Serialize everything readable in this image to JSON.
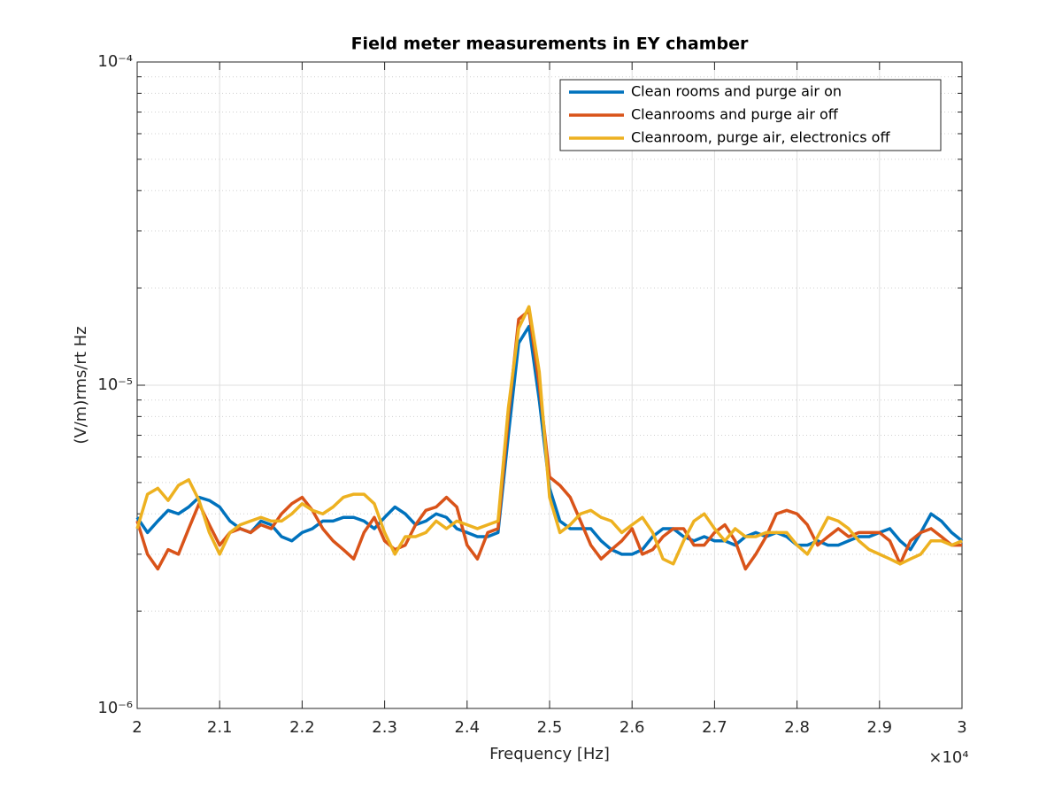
{
  "chart_data": {
    "type": "line",
    "title": "Field meter measurements in EY chamber",
    "x_label": "Frequency [Hz]",
    "y_label": "(V/m)rms/rt Hz",
    "x_multiplier": "×10⁴",
    "log_y": true,
    "grid": true,
    "minor_grid": true,
    "legend_position": "northeast",
    "xlim": [
      20000,
      30000
    ],
    "xticks": [
      {
        "value": 20000,
        "label": "2"
      },
      {
        "value": 21000,
        "label": "2.1"
      },
      {
        "value": 22000,
        "label": "2.2"
      },
      {
        "value": 23000,
        "label": "2.3"
      },
      {
        "value": 24000,
        "label": "2.4"
      },
      {
        "value": 25000,
        "label": "2.5"
      },
      {
        "value": 26000,
        "label": "2.6"
      },
      {
        "value": 27000,
        "label": "2.7"
      },
      {
        "value": 28000,
        "label": "2.8"
      },
      {
        "value": 29000,
        "label": "2.9"
      },
      {
        "value": 30000,
        "label": "3"
      }
    ],
    "ylim": [
      1e-06,
      0.0001
    ],
    "yticks": [
      {
        "value": 1e-06,
        "label": "10⁻⁶"
      },
      {
        "value": 1e-05,
        "label": "10⁻⁵"
      },
      {
        "value": 0.0001,
        "label": "10⁻⁴"
      }
    ],
    "yminorticks": [
      2e-06,
      3e-06,
      4e-06,
      5e-06,
      6e-06,
      7e-06,
      8e-06,
      9e-06,
      2e-05,
      3e-05,
      4e-05,
      5e-05,
      6e-05,
      7e-05,
      8e-05,
      9e-05
    ],
    "x": [
      20000,
      20125,
      20250,
      20375,
      20500,
      20625,
      20750,
      20875,
      21000,
      21125,
      21250,
      21375,
      21500,
      21625,
      21750,
      21875,
      22000,
      22125,
      22250,
      22375,
      22500,
      22625,
      22750,
      22875,
      23000,
      23125,
      23250,
      23375,
      23500,
      23625,
      23750,
      23875,
      24000,
      24125,
      24250,
      24375,
      24500,
      24625,
      24750,
      24875,
      25000,
      25125,
      25250,
      25375,
      25500,
      25625,
      25750,
      25875,
      26000,
      26125,
      26250,
      26375,
      26500,
      26625,
      26750,
      26875,
      27000,
      27125,
      27250,
      27375,
      27500,
      27625,
      27750,
      27875,
      28000,
      28125,
      28250,
      28375,
      28500,
      28625,
      28750,
      28875,
      29000,
      29125,
      29250,
      29375,
      29500,
      29625,
      29750,
      29875,
      30000
    ],
    "series": [
      {
        "name": "Clean rooms and purge air on",
        "color": "#0072BD",
        "values": [
          3.9e-06,
          3.5e-06,
          3.8e-06,
          4.1e-06,
          4e-06,
          4.2e-06,
          4.5e-06,
          4.4e-06,
          4.2e-06,
          3.8e-06,
          3.6e-06,
          3.5e-06,
          3.8e-06,
          3.7e-06,
          3.4e-06,
          3.3e-06,
          3.5e-06,
          3.6e-06,
          3.8e-06,
          3.8e-06,
          3.9e-06,
          3.9e-06,
          3.8e-06,
          3.6e-06,
          3.9e-06,
          4.2e-06,
          4e-06,
          3.7e-06,
          3.8e-06,
          4e-06,
          3.9e-06,
          3.6e-06,
          3.5e-06,
          3.4e-06,
          3.4e-06,
          3.5e-06,
          7e-06,
          1.35e-05,
          1.52e-05,
          9e-06,
          4.8e-06,
          3.8e-06,
          3.6e-06,
          3.6e-06,
          3.6e-06,
          3.3e-06,
          3.1e-06,
          3e-06,
          3e-06,
          3.1e-06,
          3.4e-06,
          3.6e-06,
          3.6e-06,
          3.4e-06,
          3.3e-06,
          3.4e-06,
          3.3e-06,
          3.3e-06,
          3.2e-06,
          3.4e-06,
          3.5e-06,
          3.4e-06,
          3.5e-06,
          3.4e-06,
          3.2e-06,
          3.2e-06,
          3.3e-06,
          3.2e-06,
          3.2e-06,
          3.3e-06,
          3.4e-06,
          3.4e-06,
          3.5e-06,
          3.6e-06,
          3.3e-06,
          3.1e-06,
          3.5e-06,
          4e-06,
          3.8e-06,
          3.5e-06,
          3.3e-06
        ]
      },
      {
        "name": "Cleanrooms and purge air off",
        "color": "#D95319",
        "values": [
          3.8e-06,
          3e-06,
          2.7e-06,
          3.1e-06,
          3e-06,
          3.6e-06,
          4.3e-06,
          3.7e-06,
          3.2e-06,
          3.5e-06,
          3.6e-06,
          3.5e-06,
          3.7e-06,
          3.6e-06,
          4e-06,
          4.3e-06,
          4.5e-06,
          4.1e-06,
          3.6e-06,
          3.3e-06,
          3.1e-06,
          2.9e-06,
          3.5e-06,
          3.9e-06,
          3.3e-06,
          3.1e-06,
          3.2e-06,
          3.7e-06,
          4.1e-06,
          4.2e-06,
          4.5e-06,
          4.2e-06,
          3.2e-06,
          2.9e-06,
          3.5e-06,
          3.6e-06,
          8e-06,
          1.6e-05,
          1.7e-05,
          1e-05,
          5.2e-06,
          4.9e-06,
          4.5e-06,
          3.8e-06,
          3.2e-06,
          2.9e-06,
          3.1e-06,
          3.3e-06,
          3.6e-06,
          3e-06,
          3.1e-06,
          3.4e-06,
          3.6e-06,
          3.6e-06,
          3.2e-06,
          3.2e-06,
          3.5e-06,
          3.7e-06,
          3.3e-06,
          2.7e-06,
          3e-06,
          3.4e-06,
          4e-06,
          4.1e-06,
          4e-06,
          3.7e-06,
          3.2e-06,
          3.4e-06,
          3.6e-06,
          3.4e-06,
          3.5e-06,
          3.5e-06,
          3.5e-06,
          3.3e-06,
          2.8e-06,
          3.3e-06,
          3.5e-06,
          3.6e-06,
          3.4e-06,
          3.2e-06,
          3.2e-06
        ]
      },
      {
        "name": "Cleanroom, purge air, electronics off",
        "color": "#EDB120",
        "values": [
          3.6e-06,
          4.6e-06,
          4.8e-06,
          4.4e-06,
          4.9e-06,
          5.1e-06,
          4.4e-06,
          3.5e-06,
          3e-06,
          3.5e-06,
          3.7e-06,
          3.8e-06,
          3.9e-06,
          3.8e-06,
          3.8e-06,
          4e-06,
          4.3e-06,
          4.1e-06,
          4e-06,
          4.2e-06,
          4.5e-06,
          4.6e-06,
          4.6e-06,
          4.3e-06,
          3.5e-06,
          3e-06,
          3.4e-06,
          3.4e-06,
          3.5e-06,
          3.8e-06,
          3.6e-06,
          3.8e-06,
          3.7e-06,
          3.6e-06,
          3.7e-06,
          3.8e-06,
          8.5e-06,
          1.5e-05,
          1.75e-05,
          1.1e-05,
          4.5e-06,
          3.5e-06,
          3.7e-06,
          4e-06,
          4.1e-06,
          3.9e-06,
          3.8e-06,
          3.5e-06,
          3.7e-06,
          3.9e-06,
          3.5e-06,
          2.9e-06,
          2.8e-06,
          3.3e-06,
          3.8e-06,
          4e-06,
          3.6e-06,
          3.3e-06,
          3.6e-06,
          3.4e-06,
          3.4e-06,
          3.5e-06,
          3.5e-06,
          3.5e-06,
          3.2e-06,
          3e-06,
          3.4e-06,
          3.9e-06,
          3.8e-06,
          3.6e-06,
          3.3e-06,
          3.1e-06,
          3e-06,
          2.9e-06,
          2.8e-06,
          2.9e-06,
          3e-06,
          3.3e-06,
          3.3e-06,
          3.2e-06,
          3.3e-06
        ]
      }
    ]
  }
}
